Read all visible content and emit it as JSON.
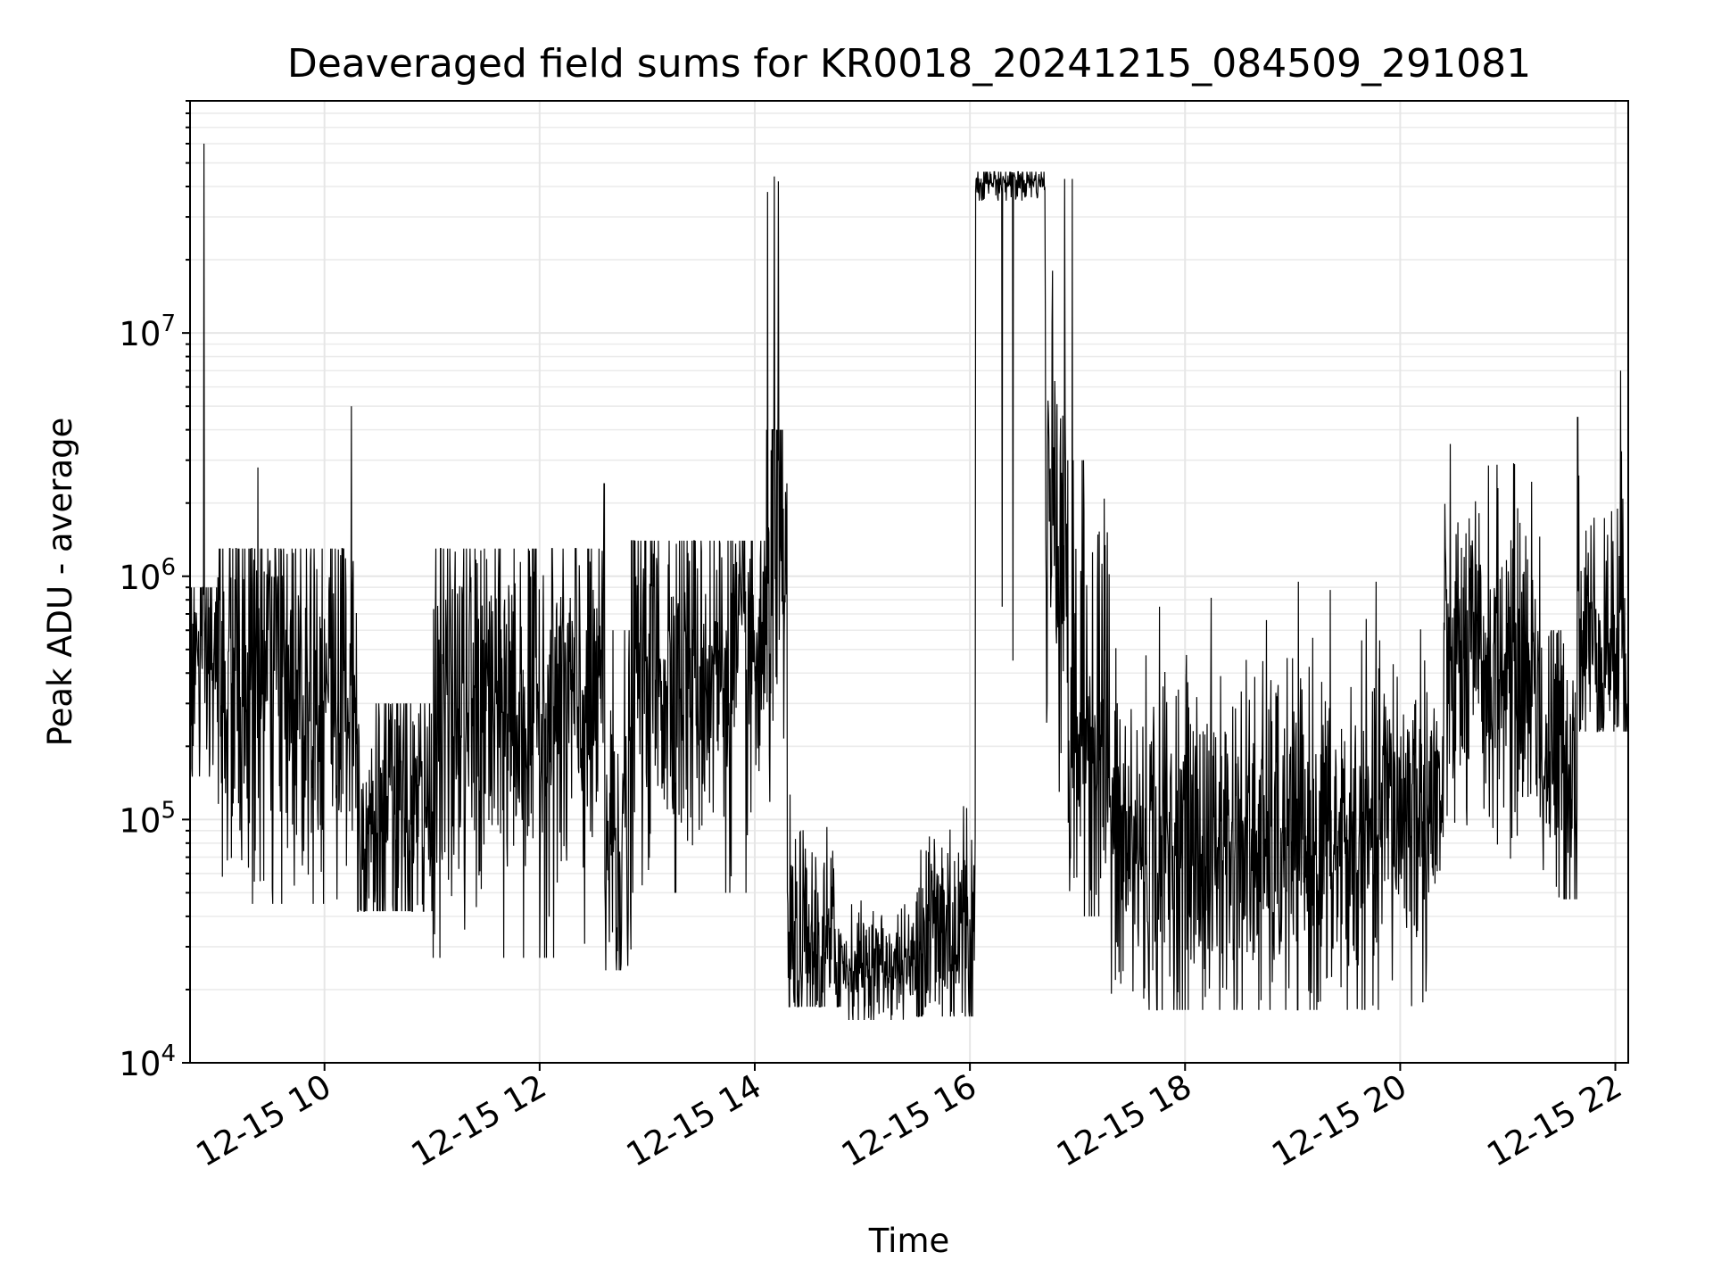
{
  "chart_data": {
    "type": "line",
    "title": "Deaveraged field sums for KR0018_20241215_084509_291081",
    "xlabel": "Time",
    "ylabel": "Peak ADU - average",
    "yscale": "log",
    "xlim_hours": [
      8.75,
      22.12
    ],
    "ylim": [
      10000,
      90000000
    ],
    "grid": true,
    "x_ticks": [
      {
        "hour": 10,
        "label": "12-15 10"
      },
      {
        "hour": 12,
        "label": "12-15 12"
      },
      {
        "hour": 14,
        "label": "12-15 14"
      },
      {
        "hour": 16,
        "label": "12-15 16"
      },
      {
        "hour": 18,
        "label": "12-15 18"
      },
      {
        "hour": 20,
        "label": "12-15 20"
      },
      {
        "hour": 22,
        "label": "12-15 22"
      }
    ],
    "y_ticks": [
      {
        "value": 10000,
        "base": "10",
        "exp": "4"
      },
      {
        "value": 100000,
        "base": "10",
        "exp": "5"
      },
      {
        "value": 1000000,
        "base": "10",
        "exp": "6"
      },
      {
        "value": 10000000,
        "base": "10",
        "exp": "7"
      }
    ],
    "series": [
      {
        "name": "field sums",
        "color": "#000000",
        "segments": [
          {
            "t0": 8.75,
            "t1": 9.0,
            "median": 450000,
            "spread": 0.35,
            "min": 150000,
            "max": 900000
          },
          {
            "t0": 9.0,
            "t1": 10.3,
            "median": 380000,
            "spread": 0.45,
            "min": 45000,
            "max": 1300000
          },
          {
            "t0": 10.3,
            "t1": 11.0,
            "median": 100000,
            "spread": 0.35,
            "min": 42000,
            "max": 300000
          },
          {
            "t0": 11.0,
            "t1": 12.6,
            "median": 280000,
            "spread": 0.45,
            "min": 27000,
            "max": 1300000
          },
          {
            "t0": 12.6,
            "t1": 12.85,
            "median": 90000,
            "spread": 0.45,
            "min": 24000,
            "max": 600000
          },
          {
            "t0": 12.85,
            "t1": 14.1,
            "median": 420000,
            "spread": 0.4,
            "min": 50000,
            "max": 1400000
          },
          {
            "t0": 14.1,
            "t1": 14.3,
            "median": 1000000,
            "spread": 0.5,
            "min": 90000,
            "max": 4000000
          },
          {
            "t0": 14.3,
            "t1": 14.8,
            "median": 28000,
            "spread": 0.25,
            "min": 17000,
            "max": 250000
          },
          {
            "t0": 14.8,
            "t1": 15.5,
            "median": 25000,
            "spread": 0.12,
            "min": 15000,
            "max": 60000
          },
          {
            "t0": 15.5,
            "t1": 16.05,
            "median": 35000,
            "spread": 0.3,
            "min": 15500,
            "max": 130000
          },
          {
            "t0": 16.05,
            "t1": 16.7,
            "median": 42000000,
            "spread": 0.04,
            "min": 35000000,
            "max": 46000000
          },
          {
            "t0": 16.7,
            "t1": 16.9,
            "median": 2000000,
            "spread": 0.55,
            "min": 65000,
            "max": 20000000
          },
          {
            "t0": 16.9,
            "t1": 17.3,
            "median": 250000,
            "spread": 0.5,
            "min": 40000,
            "max": 3000000
          },
          {
            "t0": 17.3,
            "t1": 19.8,
            "median": 75000,
            "spread": 0.38,
            "min": 16500,
            "max": 950000
          },
          {
            "t0": 19.8,
            "t1": 20.4,
            "median": 110000,
            "spread": 0.35,
            "min": 17000,
            "max": 1000000
          },
          {
            "t0": 20.4,
            "t1": 21.3,
            "median": 420000,
            "spread": 0.35,
            "min": 50000,
            "max": 3500000
          },
          {
            "t0": 21.3,
            "t1": 21.65,
            "median": 180000,
            "spread": 0.35,
            "min": 47000,
            "max": 600000
          },
          {
            "t0": 21.65,
            "t1": 22.12,
            "median": 550000,
            "spread": 0.3,
            "min": 230000,
            "max": 7000000
          }
        ],
        "spikes": [
          {
            "hour": 8.88,
            "value": 60000000
          },
          {
            "hour": 9.38,
            "value": 2800000
          },
          {
            "hour": 10.25,
            "value": 5000000
          },
          {
            "hour": 12.6,
            "value": 2400000
          },
          {
            "hour": 14.12,
            "value": 38000000
          },
          {
            "hour": 14.18,
            "value": 44000000
          },
          {
            "hour": 14.22,
            "value": 42000000
          },
          {
            "hour": 16.3,
            "value": 750000
          },
          {
            "hour": 16.4,
            "value": 450000
          },
          {
            "hour": 16.88,
            "value": 43000000
          },
          {
            "hour": 16.95,
            "value": 43000000
          },
          {
            "hour": 21.65,
            "value": 4500000
          },
          {
            "hour": 22.05,
            "value": 7000000
          }
        ]
      }
    ]
  }
}
